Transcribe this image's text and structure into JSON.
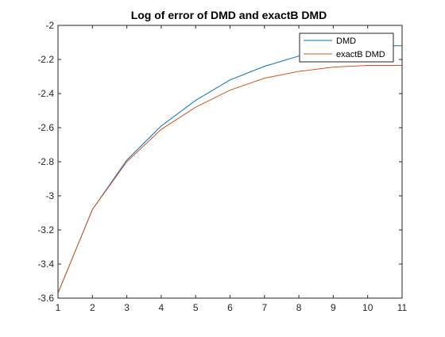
{
  "chart_data": {
    "type": "line",
    "title": "Log of error of DMD and exactB DMD",
    "xlabel": "",
    "ylabel": "",
    "x": [
      1,
      2,
      3,
      4,
      5,
      6,
      7,
      8,
      9,
      10,
      11
    ],
    "xlim": [
      1,
      11
    ],
    "ylim": [
      -3.6,
      -2
    ],
    "xticks": [
      1,
      2,
      3,
      4,
      5,
      6,
      7,
      8,
      9,
      10,
      11
    ],
    "yticks": [
      -2,
      -2.2,
      -2.4,
      -2.6,
      -2.8,
      -3,
      -3.2,
      -3.4,
      -3.6
    ],
    "grid": false,
    "legend_position": "top-right",
    "series": [
      {
        "name": "DMD",
        "color": "#0072BD",
        "values": [
          -3.57,
          -3.08,
          -2.79,
          -2.59,
          -2.44,
          -2.32,
          -2.24,
          -2.18,
          -2.14,
          -2.12,
          -2.12
        ]
      },
      {
        "name": "exactB DMD",
        "color": "#D95319",
        "values": [
          -3.57,
          -3.08,
          -2.8,
          -2.61,
          -2.48,
          -2.38,
          -2.31,
          -2.27,
          -2.245,
          -2.235,
          -2.235
        ]
      }
    ]
  }
}
